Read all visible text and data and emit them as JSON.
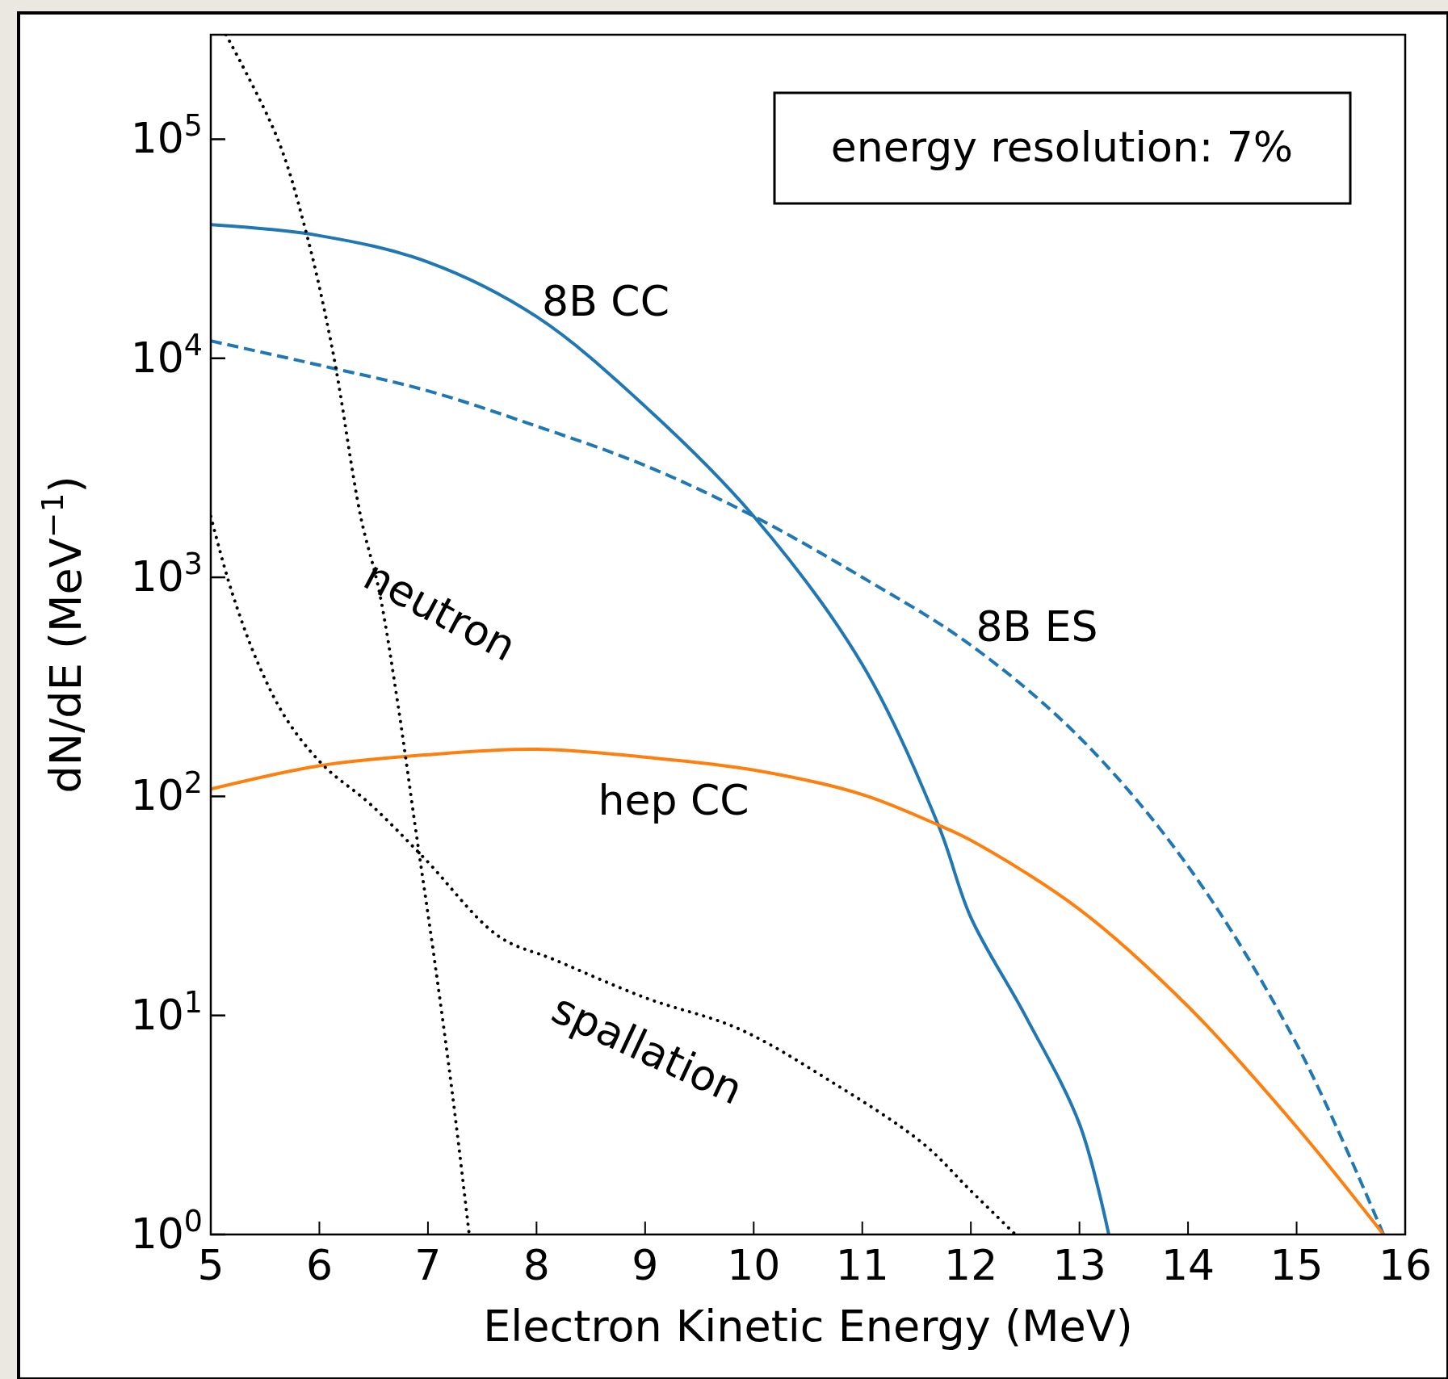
{
  "chart_data": {
    "type": "line",
    "xlabel": "Electron Kinetic Energy (MeV)",
    "ylabel": "dN/dE (MeV$^{−1}$)",
    "log": "y",
    "xlim": [
      5,
      16
    ],
    "xticks": [
      5,
      6,
      7,
      8,
      9,
      10,
      11,
      12,
      13,
      14,
      15,
      16
    ],
    "ylim": [
      1,
      300000
    ],
    "yticks": [
      {
        "value": 1,
        "label": "10$^{0}$"
      },
      {
        "value": 10,
        "label": "10$^{1}$"
      },
      {
        "value": 100,
        "label": "10$^{2}$"
      },
      {
        "value": 1000,
        "label": "10$^{3}$"
      },
      {
        "value": 10000,
        "label": "10$^{4}$"
      },
      {
        "value": 100000,
        "label": "10$^{5}$"
      }
    ],
    "grid": false,
    "legend": false,
    "series": [
      {
        "name": "8B CC",
        "color": "#1f77b4",
        "line_style": "solid",
        "x": [
          5,
          6,
          7,
          8,
          9,
          10,
          11,
          11.7,
          12,
          12.5,
          13,
          13.27
        ],
        "values": [
          40700,
          36300,
          27500,
          15500,
          6030,
          1900,
          400,
          74,
          28,
          10,
          3.2,
          1
        ]
      },
      {
        "name": "8B ES",
        "color": "#1f77b4",
        "line_style": "dashed",
        "x": [
          5,
          6,
          7,
          8,
          9,
          10,
          11,
          12,
          13,
          14,
          15,
          15.8
        ],
        "values": [
          12000,
          9300,
          7100,
          4900,
          3240,
          1900,
          1000,
          490,
          186,
          48,
          7.4,
          1
        ]
      },
      {
        "name": "hep CC",
        "color": "#ff7f0e",
        "line_style": "solid",
        "x": [
          5,
          6,
          7,
          8,
          9,
          10,
          11,
          11.7,
          12,
          13,
          14,
          15,
          15.8
        ],
        "values": [
          108,
          138,
          155,
          164,
          151,
          132,
          102,
          74,
          63,
          30.5,
          11,
          3.1,
          1
        ]
      },
      {
        "name": "neutron",
        "color": "#000000",
        "line_style": "dotted",
        "x": [
          5.14,
          5.61,
          5.87,
          6.12,
          6.38,
          6.55,
          6.72,
          6.89,
          7.06,
          7.23,
          7.38
        ],
        "values": [
          300000,
          102000,
          39000,
          11000,
          1900,
          870,
          270,
          69,
          18,
          4.2,
          1
        ]
      },
      {
        "name": "spallation",
        "color": "#000000",
        "line_style": "dotted",
        "x": [
          5,
          5.19,
          5.44,
          5.7,
          6.04,
          6.46,
          6.97,
          7.65,
          8.16,
          9.01,
          9.86,
          10.71,
          11.56,
          11.99,
          12.41
        ],
        "values": [
          1900,
          870,
          400,
          224,
          138,
          93,
          52,
          23,
          18,
          12,
          8.7,
          5,
          2.6,
          1.6,
          1
        ]
      }
    ],
    "annotations": [
      "energy resolution: 7%"
    ]
  }
}
